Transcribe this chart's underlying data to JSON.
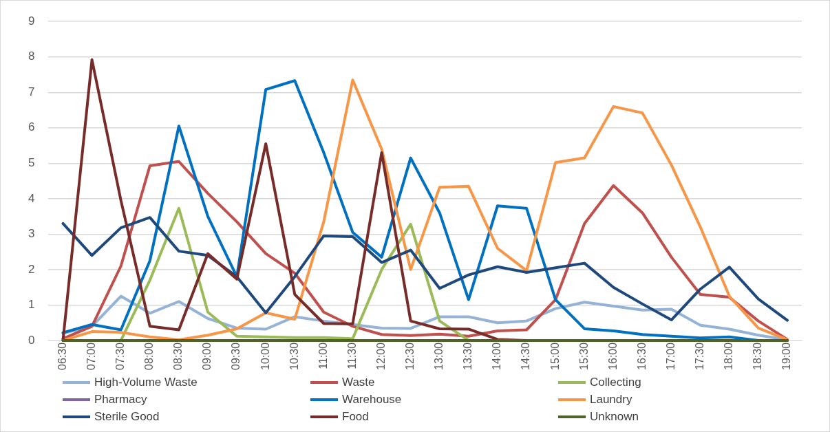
{
  "chart_data": {
    "type": "line",
    "categories": [
      "06:30",
      "07:00",
      "07:30",
      "08:00",
      "08:30",
      "09:00",
      "09:30",
      "10:00",
      "10:30",
      "11:00",
      "11:30",
      "12:00",
      "12:30",
      "13:00",
      "13:30",
      "14:00",
      "14:30",
      "15:00",
      "15:30",
      "16:00",
      "16:30",
      "17:00",
      "17:30",
      "18:00",
      "18:30",
      "19:00"
    ],
    "ylim": [
      0,
      9
    ],
    "yticks": [
      0,
      1,
      2,
      3,
      4,
      5,
      6,
      7,
      8,
      9
    ],
    "grid": "y",
    "legend": "bottom",
    "marker": "none",
    "line_style": "solid",
    "series": [
      {
        "name": "High-Volume Waste",
        "color": "#95b3d7",
        "values": [
          0.2,
          0.4,
          1.25,
          0.77,
          1.1,
          0.62,
          0.35,
          0.32,
          0.67,
          0.55,
          0.45,
          0.35,
          0.34,
          0.67,
          0.67,
          0.5,
          0.55,
          0.9,
          1.08,
          0.97,
          0.86,
          0.88,
          0.43,
          0.32,
          0.15,
          0.02
        ]
      },
      {
        "name": "Waste",
        "color": "#c0504d",
        "values": [
          0.05,
          0.4,
          2.1,
          4.93,
          5.05,
          4.15,
          3.35,
          2.45,
          1.9,
          0.8,
          0.4,
          0.17,
          0.14,
          0.18,
          0.12,
          0.27,
          0.3,
          1.15,
          3.3,
          4.37,
          3.6,
          2.35,
          1.3,
          1.22,
          0.55,
          0.03
        ]
      },
      {
        "name": "Collecting",
        "color": "#9bbb59",
        "values": [
          0,
          0,
          0,
          1.7,
          3.73,
          0.8,
          0.12,
          0.1,
          0.08,
          0.08,
          0.05,
          2,
          3.28,
          0.55,
          0,
          null,
          null,
          null,
          null,
          null,
          null,
          null,
          null,
          null,
          null,
          null
        ]
      },
      {
        "name": "Pharmacy",
        "color": "#8064a2",
        "values": [
          null,
          null,
          null,
          null,
          null,
          null,
          null,
          null,
          null,
          null,
          null,
          null,
          null,
          null,
          null,
          null,
          null,
          null,
          null,
          null,
          null,
          null,
          null,
          null,
          null,
          null
        ]
      },
      {
        "name": "Warehouse",
        "color": "#0070c0",
        "values": [
          0.22,
          0.45,
          0.3,
          2.25,
          6.05,
          3.5,
          1.8,
          7.08,
          7.33,
          5.3,
          3.05,
          2.35,
          5.15,
          3.6,
          1.15,
          3.8,
          3.73,
          1.15,
          0.33,
          0.27,
          0.17,
          0.12,
          0.07,
          0.1,
          0,
          0
        ]
      },
      {
        "name": "Laundry",
        "color": "#f79646",
        "values": [
          0,
          0.25,
          0.23,
          0.1,
          0.02,
          0.15,
          0.33,
          0.78,
          0.6,
          3.35,
          7.35,
          5.4,
          2,
          4.32,
          4.35,
          2.6,
          1.97,
          5.02,
          5.15,
          6.6,
          6.42,
          4.95,
          3.2,
          1.25,
          0.35,
          0.02
        ]
      },
      {
        "name": "Sterile Good",
        "color": "#1f497d",
        "values": [
          3.3,
          2.4,
          3.18,
          3.47,
          2.52,
          2.4,
          1.8,
          0.78,
          1.8,
          2.95,
          2.93,
          2.2,
          2.55,
          1.47,
          1.85,
          2.08,
          1.92,
          2.05,
          2.18,
          1.5,
          1.03,
          0.58,
          1.45,
          2.07,
          1.17,
          0.57
        ]
      },
      {
        "name": "Food",
        "color": "#772c2a",
        "values": [
          0,
          7.92,
          3.95,
          0.4,
          0.3,
          2.45,
          1.73,
          5.55,
          1.3,
          0.48,
          0.47,
          5.3,
          0.55,
          0.33,
          0.32,
          0.03,
          0,
          0,
          0,
          0,
          0,
          0,
          0,
          0,
          0,
          0
        ]
      },
      {
        "name": "Unknown",
        "color": "#4f6228",
        "values": [
          0,
          0,
          0,
          0,
          0,
          0,
          0,
          0,
          0,
          0,
          0,
          0,
          0,
          0,
          0,
          0,
          0,
          0,
          0,
          0,
          0,
          0,
          0,
          0,
          0,
          0
        ]
      }
    ]
  }
}
